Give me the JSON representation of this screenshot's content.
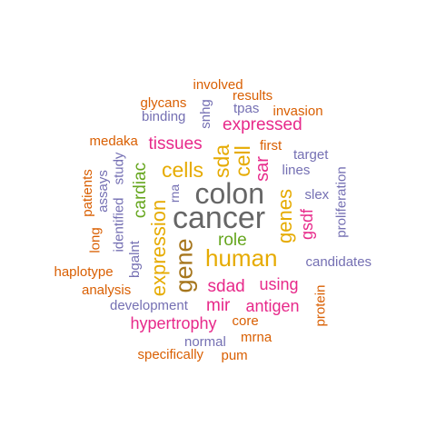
{
  "words": [
    {
      "text": "cancer",
      "color": "#666666"
    },
    {
      "text": "colon",
      "color": "#666666"
    },
    {
      "text": "gene",
      "color": "#a6761d"
    },
    {
      "text": "human",
      "color": "#e6ab02"
    },
    {
      "text": "expression",
      "color": "#e6ab02"
    },
    {
      "text": "cells",
      "color": "#e6ab02"
    },
    {
      "text": "cell",
      "color": "#e6ab02"
    },
    {
      "text": "sda",
      "color": "#e6ab02"
    },
    {
      "text": "genes",
      "color": "#e6ab02"
    },
    {
      "text": "tissues",
      "color": "#e7298a"
    },
    {
      "text": "expressed",
      "color": "#e7298a"
    },
    {
      "text": "sar",
      "color": "#e7298a"
    },
    {
      "text": "sdad",
      "color": "#e7298a"
    },
    {
      "text": "using",
      "color": "#e7298a"
    },
    {
      "text": "mir",
      "color": "#e7298a"
    },
    {
      "text": "antigen",
      "color": "#e7298a"
    },
    {
      "text": "hypertrophy",
      "color": "#e7298a"
    },
    {
      "text": "gsdf",
      "color": "#e7298a"
    },
    {
      "text": "cardiac",
      "color": "#66a61e"
    },
    {
      "text": "role",
      "color": "#66a61e"
    },
    {
      "text": "rna",
      "color": "#7570b3"
    },
    {
      "text": "lines",
      "color": "#7570b3"
    },
    {
      "text": "target",
      "color": "#7570b3"
    },
    {
      "text": "slex",
      "color": "#7570b3"
    },
    {
      "text": "proliferation",
      "color": "#7570b3"
    },
    {
      "text": "candidates",
      "color": "#7570b3"
    },
    {
      "text": "development",
      "color": "#7570b3"
    },
    {
      "text": "bgalnt",
      "color": "#7570b3"
    },
    {
      "text": "identified",
      "color": "#7570b3"
    },
    {
      "text": "study",
      "color": "#7570b3"
    },
    {
      "text": "assays",
      "color": "#7570b3"
    },
    {
      "text": "binding",
      "color": "#7570b3"
    },
    {
      "text": "snhg",
      "color": "#7570b3"
    },
    {
      "text": "tpas",
      "color": "#7570b3"
    },
    {
      "text": "normal",
      "color": "#7570b3"
    },
    {
      "text": "first",
      "color": "#d95f02"
    },
    {
      "text": "invasion",
      "color": "#d95f02"
    },
    {
      "text": "results",
      "color": "#d95f02"
    },
    {
      "text": "involved",
      "color": "#d95f02"
    },
    {
      "text": "glycans",
      "color": "#d95f02"
    },
    {
      "text": "medaka",
      "color": "#d95f02"
    },
    {
      "text": "patients",
      "color": "#d95f02"
    },
    {
      "text": "long",
      "color": "#d95f02"
    },
    {
      "text": "haplotype",
      "color": "#d95f02"
    },
    {
      "text": "analysis",
      "color": "#d95f02"
    },
    {
      "text": "core",
      "color": "#d95f02"
    },
    {
      "text": "mrna",
      "color": "#d95f02"
    },
    {
      "text": "pum",
      "color": "#d95f02"
    },
    {
      "text": "specifically",
      "color": "#d95f02"
    },
    {
      "text": "protein",
      "color": "#d95f02"
    }
  ]
}
